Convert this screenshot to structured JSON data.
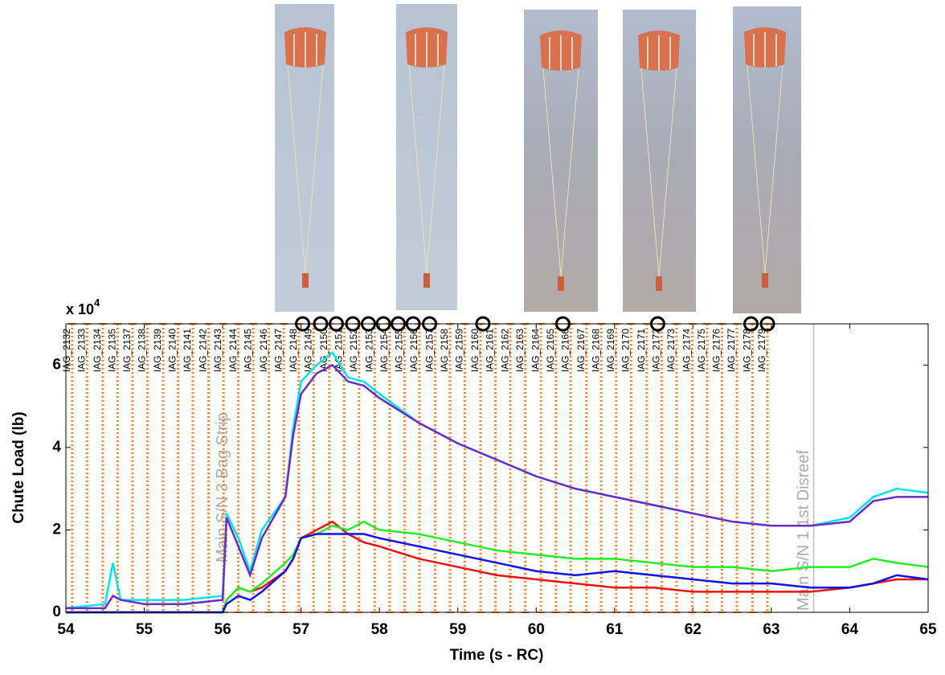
{
  "chart_data": {
    "type": "line",
    "ylabel": "Chute Load (lb)",
    "xlabel": "Time (s - RC)",
    "y_scale_label": "x 10",
    "y_scale_exponent": "4",
    "xlim": [
      54,
      65
    ],
    "xticks": [
      54,
      55,
      56,
      57,
      58,
      59,
      60,
      61,
      62,
      63,
      64,
      65
    ],
    "ylim": [
      0,
      7
    ],
    "yticks": [
      0,
      2,
      4,
      6
    ],
    "x": [
      54,
      54.5,
      54.6,
      54.7,
      55,
      55.5,
      56,
      56.05,
      56.2,
      56.35,
      56.5,
      56.8,
      56.9,
      57,
      57.2,
      57.4,
      57.6,
      57.8,
      58,
      58.5,
      59,
      59.5,
      60,
      60.5,
      61,
      61.5,
      62,
      62.5,
      63,
      63.5,
      64,
      64.3,
      64.6,
      65
    ],
    "series": [
      {
        "color": "#00e5ee",
        "values": [
          0.1,
          0.2,
          1.2,
          0.3,
          0.3,
          0.3,
          0.4,
          2.4,
          1.8,
          1.0,
          2.0,
          2.8,
          4.5,
          5.6,
          6.0,
          6.3,
          5.7,
          5.6,
          5.3,
          4.6,
          4.1,
          3.7,
          3.3,
          3.0,
          2.8,
          2.6,
          2.4,
          2.2,
          2.1,
          2.1,
          2.3,
          2.8,
          3.0,
          2.9
        ]
      },
      {
        "color": "#6a2bc8",
        "values": [
          0.1,
          0.1,
          0.4,
          0.3,
          0.2,
          0.2,
          0.3,
          2.3,
          1.6,
          0.9,
          1.8,
          2.8,
          4.3,
          5.3,
          5.8,
          6.0,
          5.6,
          5.5,
          5.2,
          4.6,
          4.1,
          3.7,
          3.3,
          3.0,
          2.8,
          2.6,
          2.4,
          2.2,
          2.1,
          2.1,
          2.2,
          2.7,
          2.8,
          2.8
        ]
      },
      {
        "color": "#ee1111",
        "values": [
          0,
          0,
          0,
          0,
          0,
          0,
          0,
          0.3,
          0.6,
          0.5,
          0.6,
          1.0,
          1.3,
          1.8,
          2.0,
          2.2,
          1.9,
          1.7,
          1.6,
          1.3,
          1.1,
          0.9,
          0.8,
          0.7,
          0.6,
          0.6,
          0.5,
          0.5,
          0.5,
          0.5,
          0.6,
          0.7,
          0.8,
          0.8
        ]
      },
      {
        "color": "#22ee22",
        "values": [
          0,
          0,
          0,
          0,
          0,
          0,
          0,
          0.3,
          0.6,
          0.5,
          0.7,
          1.2,
          1.4,
          1.8,
          1.9,
          2.1,
          2.0,
          2.2,
          2.0,
          1.9,
          1.7,
          1.5,
          1.4,
          1.3,
          1.3,
          1.2,
          1.1,
          1.1,
          1.0,
          1.1,
          1.1,
          1.3,
          1.2,
          1.1
        ]
      },
      {
        "color": "#1111ee",
        "values": [
          0,
          0,
          0,
          0,
          0,
          0,
          0,
          0.2,
          0.4,
          0.3,
          0.5,
          1.0,
          1.3,
          1.8,
          1.9,
          1.9,
          1.9,
          1.9,
          1.8,
          1.6,
          1.4,
          1.2,
          1.0,
          0.9,
          1.0,
          0.9,
          0.8,
          0.7,
          0.7,
          0.6,
          0.6,
          0.7,
          0.9,
          0.8
        ]
      }
    ],
    "frame_color": "#ff7f27",
    "frames": {
      "labels": [
        "IAG_2132",
        "IAG_2133",
        "IAG_2134",
        "IAG_2135",
        "IAG_2137",
        "IAG_2138",
        "IAG_2139",
        "IAG_2140",
        "IAG_2141",
        "IAG_2142",
        "IAG_2143",
        "IAG_2144",
        "IAG_2145",
        "IAG_2146",
        "IAG_2147",
        "IAG_2148",
        "IAG_2149",
        "IAG_2150",
        "IAG_2151",
        "IAG_2152",
        "IAG_2153",
        "IAG_2154",
        "IAG_2155",
        "IAG_2156",
        "IAG_2157",
        "IAG_2158",
        "IAG_2159",
        "IAG_2160",
        "IAG_2161",
        "IAG_2162",
        "IAG_2163",
        "IAG_2164",
        "IAG_2165",
        "IAG_2166",
        "IAG_2167",
        "IAG_2168",
        "IAG_2169",
        "IAG_2170",
        "IAG_2171",
        "IAG_2172",
        "IAG_2173",
        "IAG_2174",
        "IAG_2175",
        "IAG_2176",
        "IAG_2177",
        "IAG_2178",
        "IAG_2179"
      ],
      "x": [
        54.08,
        54.27,
        54.47,
        54.66,
        54.85,
        55.04,
        55.24,
        55.43,
        55.62,
        55.82,
        56.01,
        56.2,
        56.39,
        56.59,
        56.78,
        56.97,
        57.16,
        57.36,
        57.55,
        57.74,
        57.94,
        58.13,
        58.32,
        58.51,
        58.71,
        58.9,
        59.09,
        59.29,
        59.48,
        59.67,
        59.86,
        60.06,
        60.25,
        60.44,
        60.64,
        60.83,
        61.02,
        61.21,
        61.41,
        61.6,
        61.79,
        61.99,
        62.18,
        62.37,
        62.56,
        62.76,
        62.95
      ]
    },
    "circled_x": [
      57.02,
      57.25,
      57.45,
      57.66,
      57.86,
      58.05,
      58.24,
      58.43,
      58.64,
      59.32,
      60.34,
      61.55,
      62.74,
      62.95
    ],
    "annotations": [
      {
        "text": "Main S/N 3 Bag Strip",
        "x": 56.13
      },
      {
        "text": "Main S/N 1 1st Disreef",
        "x": 63.54
      }
    ]
  }
}
